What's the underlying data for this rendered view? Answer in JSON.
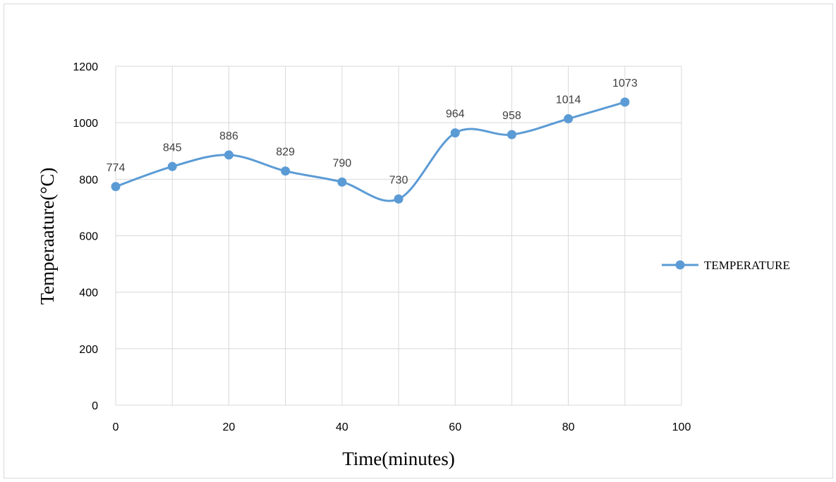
{
  "chart_data": {
    "type": "line",
    "smooth": true,
    "x": [
      0,
      10,
      20,
      30,
      40,
      50,
      60,
      70,
      80,
      90
    ],
    "series": [
      {
        "name": "TEMPERATURE",
        "values": [
          774,
          845,
          886,
          829,
          790,
          730,
          964,
          958,
          1014,
          1073
        ],
        "data_labels": [
          "774",
          "845",
          "886",
          "829",
          "790",
          "730",
          "964",
          "958",
          "1014",
          "1073"
        ],
        "color": "#5b9bd5"
      }
    ],
    "xlabel": "Time(minutes)",
    "ylabel": "Temperaature(°C)",
    "xlim": [
      0,
      100
    ],
    "ylim": [
      0,
      1200
    ],
    "x_ticks": [
      "0",
      "20",
      "40",
      "60",
      "80",
      "100"
    ],
    "x_tick_values": [
      0,
      20,
      40,
      60,
      80,
      100
    ],
    "y_ticks": [
      "0",
      "200",
      "400",
      "600",
      "800",
      "1000",
      "1200"
    ],
    "y_tick_values": [
      0,
      200,
      400,
      600,
      800,
      1000,
      1200
    ],
    "x_gridlines": [
      0,
      10,
      20,
      30,
      40,
      50,
      60,
      70,
      80,
      90,
      100
    ],
    "grid": true,
    "legend_position": "right",
    "gridline_color": "#d9d9d9"
  }
}
